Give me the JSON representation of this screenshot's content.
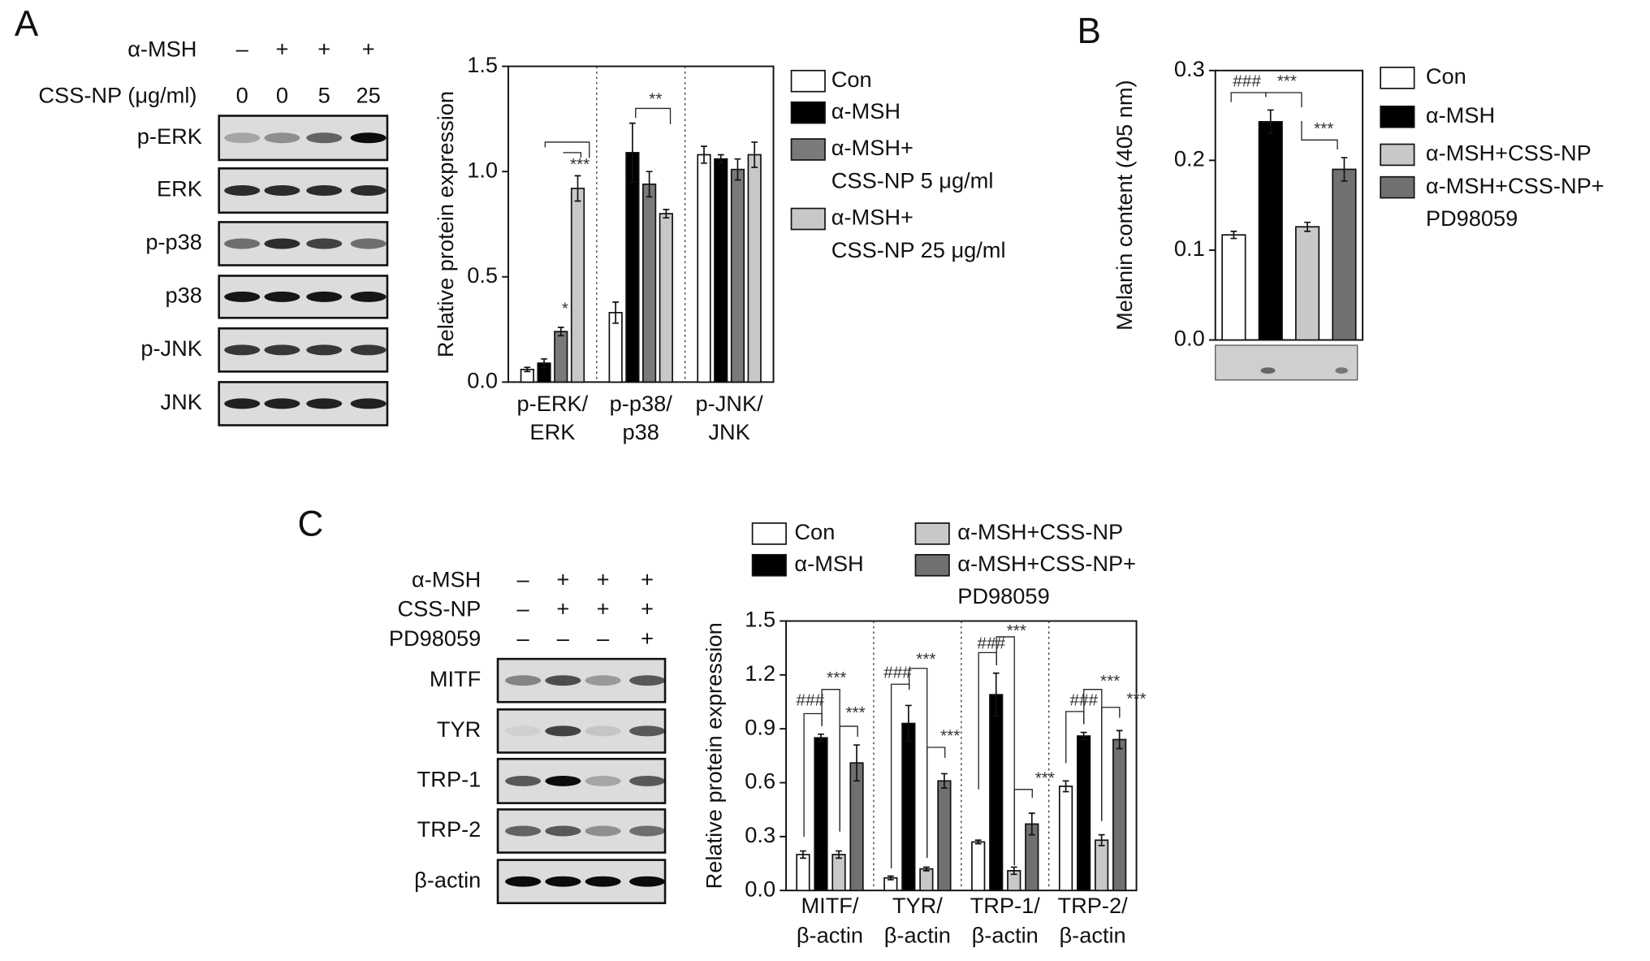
{
  "panels": [
    "A",
    "B",
    "C"
  ],
  "blots": [
    {
      "conditions": [
        {
          "label": "α-MSH",
          "values": [
            "–",
            "+",
            "+",
            "+"
          ]
        },
        {
          "label": "CSS-NP (μg/ml)",
          "values": [
            "0",
            "0",
            "5",
            "25"
          ]
        }
      ],
      "bands": [
        "p-ERK",
        "ERK",
        "p-p38",
        "p38",
        "p-JNK",
        "JNK"
      ]
    },
    {
      "conditions": [
        {
          "label": "α-MSH",
          "values": [
            "–",
            "+",
            "+",
            "+"
          ]
        },
        {
          "label": "CSS-NP",
          "values": [
            "–",
            "+",
            "+",
            "+"
          ]
        },
        {
          "label": "PD98059",
          "values": [
            "–",
            "–",
            "–",
            "+"
          ]
        }
      ],
      "bands": [
        "MITF",
        "TYR",
        "TRP-1",
        "TRP-2",
        "β-actin"
      ]
    }
  ],
  "chart_data": [
    {
      "type": "bar",
      "y_label": "Relative protein expression",
      "categories": [
        [
          "p-ERK/",
          "ERK"
        ],
        [
          "p-p38/",
          "p38"
        ],
        [
          "p-JNK/",
          "JNK"
        ]
      ],
      "series": [
        {
          "name": "Con",
          "color": "#ffffff",
          "values": [
            0.06,
            0.33,
            1.08
          ],
          "errors": [
            0.01,
            0.05,
            0.04
          ]
        },
        {
          "name": "α-MSH",
          "color": "#000000",
          "values": [
            0.09,
            1.09,
            1.06
          ],
          "errors": [
            0.02,
            0.14,
            0.02
          ]
        },
        {
          "name": [
            "α-MSH+",
            "CSS-NP 5 μg/ml"
          ],
          "color": "#7a7a7a",
          "values": [
            0.24,
            0.94,
            1.01
          ],
          "errors": [
            0.02,
            0.06,
            0.05
          ]
        },
        {
          "name": [
            "α-MSH+",
            "CSS-NP 25 μg/ml"
          ],
          "color": "#c8c8c8",
          "values": [
            0.92,
            0.8,
            1.08
          ],
          "errors": [
            0.06,
            0.02,
            0.06
          ]
        }
      ],
      "ylim": [
        0,
        1.5
      ],
      "yticks": [
        {
          "value": 0,
          "label": "0.0"
        },
        0.5,
        {
          "value": 1,
          "label": "1.0"
        },
        1.5
      ],
      "annotations": [
        "***",
        "*",
        "**"
      ]
    },
    {
      "type": "bar",
      "y_label": "Melanin content (405 nm)",
      "series": [
        {
          "name": "Con",
          "color": "#ffffff",
          "values": [
            0.117
          ],
          "errors": [
            0.004
          ]
        },
        {
          "name": "α-MSH",
          "color": "#000000",
          "values": [
            0.243
          ],
          "errors": [
            0.013
          ]
        },
        {
          "name": "α-MSH+CSS-NP",
          "color": "#c8c8c8",
          "values": [
            0.126
          ],
          "errors": [
            0.005
          ]
        },
        {
          "name": [
            "α-MSH+CSS-NP+",
            "PD98059"
          ],
          "color": "#707070",
          "values": [
            0.19
          ],
          "errors": [
            0.013
          ]
        }
      ],
      "ylim": [
        0,
        0.3
      ],
      "yticks": [
        {
          "value": 0,
          "label": "0.0"
        },
        0.1,
        0.2,
        0.3
      ],
      "annotations": [
        "###",
        "***",
        "***"
      ]
    },
    {
      "type": "bar",
      "y_label": "Relative protein expression",
      "categories": [
        [
          "MITF/",
          "β-actin"
        ],
        [
          "TYR/",
          "β-actin"
        ],
        [
          "TRP-1/",
          "β-actin"
        ],
        [
          "TRP-2/",
          "β-actin"
        ]
      ],
      "series": [
        {
          "name": "Con",
          "color": "#ffffff",
          "values": [
            0.2,
            0.07,
            0.27,
            0.58
          ],
          "errors": [
            0.02,
            0.01,
            0.01,
            0.03
          ]
        },
        {
          "name": "α-MSH",
          "color": "#000000",
          "values": [
            0.85,
            0.93,
            1.09,
            0.86
          ],
          "errors": [
            0.02,
            0.1,
            0.12,
            0.02
          ]
        },
        {
          "name": "α-MSH+CSS-NP",
          "color": "#c8c8c8",
          "values": [
            0.2,
            0.12,
            0.11,
            0.28
          ],
          "errors": [
            0.02,
            0.01,
            0.02,
            0.03
          ]
        },
        {
          "name": [
            "α-MSH+CSS-NP+",
            "PD98059"
          ],
          "color": "#707070",
          "values": [
            0.71,
            0.61,
            0.37,
            0.84
          ],
          "errors": [
            0.1,
            0.04,
            0.06,
            0.05
          ]
        }
      ],
      "ylim": [
        0,
        1.5
      ],
      "yticks": [
        {
          "value": 0,
          "label": "0.0"
        },
        0.3,
        0.6,
        0.9,
        1.2,
        1.5
      ],
      "annotations": [
        "###",
        "***",
        "***",
        "###",
        "***",
        "***",
        "###",
        "***",
        "***",
        "###",
        "***",
        "***"
      ]
    }
  ]
}
